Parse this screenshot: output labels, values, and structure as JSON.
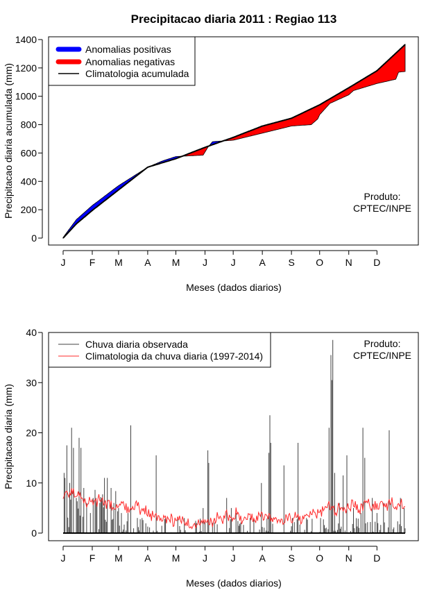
{
  "title": "Precipitacao diaria 2011 : Regiao 113",
  "months": [
    "J",
    "F",
    "M",
    "A",
    "M",
    "J",
    "J",
    "A",
    "S",
    "O",
    "N",
    "D"
  ],
  "colors": {
    "positive": "#0000ff",
    "negative": "#ff0000",
    "clim_line": "#000000",
    "obs_bars": "#404040",
    "clim_rain": "#ff2a2a"
  },
  "chart_data": [
    {
      "type": "area",
      "ylabel": "Precipitacao diaria acumulada (mm)",
      "xlabel": "Meses (dados diarios)",
      "ylim": [
        0,
        1400
      ],
      "yticks": [
        0,
        200,
        400,
        600,
        800,
        1000,
        1200,
        1400
      ],
      "xlim_days": [
        1,
        365
      ],
      "legend": {
        "position": "top-left",
        "entries": [
          "Anomalias positivas",
          "Anomalias negativas",
          "Climatologia acumulada"
        ]
      },
      "annotation": [
        "Produto:",
        "CPTEC/INPE"
      ],
      "climatology_cumulative": [
        [
          1,
          0
        ],
        [
          15,
          100
        ],
        [
          32,
          195
        ],
        [
          60,
          340
        ],
        [
          91,
          500
        ],
        [
          121,
          560
        ],
        [
          152,
          640
        ],
        [
          182,
          710
        ],
        [
          213,
          790
        ],
        [
          244,
          845
        ],
        [
          274,
          940
        ],
        [
          305,
          1060
        ],
        [
          335,
          1180
        ],
        [
          365,
          1365
        ]
      ],
      "observed_cumulative": [
        [
          1,
          5
        ],
        [
          15,
          130
        ],
        [
          32,
          230
        ],
        [
          60,
          370
        ],
        [
          91,
          500
        ],
        [
          107,
          545
        ],
        [
          121,
          575
        ],
        [
          150,
          585
        ],
        [
          155,
          640
        ],
        [
          160,
          680
        ],
        [
          182,
          690
        ],
        [
          213,
          740
        ],
        [
          244,
          790
        ],
        [
          265,
          800
        ],
        [
          272,
          840
        ],
        [
          274,
          870
        ],
        [
          285,
          950
        ],
        [
          305,
          1010
        ],
        [
          310,
          1040
        ],
        [
          335,
          1090
        ],
        [
          355,
          1120
        ],
        [
          358,
          1170
        ],
        [
          365,
          1175
        ]
      ]
    },
    {
      "type": "bar",
      "ylabel": "Precipitacao diaria (mm)",
      "xlabel": "Meses (dados diarios)",
      "ylim": [
        0,
        40
      ],
      "yticks": [
        0,
        10,
        20,
        30,
        40
      ],
      "xlim_days": [
        1,
        365
      ],
      "legend": {
        "position": "top-left",
        "entries": [
          "Chuva diaria observada",
          "Climatologia da chuva diaria (1997-2014)"
        ]
      },
      "annotation": [
        "Produto:",
        "CPTEC/INPE"
      ],
      "observed_peaks": [
        [
          2,
          12
        ],
        [
          3,
          11
        ],
        [
          5,
          17.5
        ],
        [
          8,
          10
        ],
        [
          10,
          21
        ],
        [
          12,
          17
        ],
        [
          15,
          7
        ],
        [
          18,
          19
        ],
        [
          20,
          17
        ],
        [
          23,
          9
        ],
        [
          26,
          6
        ],
        [
          30,
          4
        ],
        [
          36,
          7
        ],
        [
          40,
          6
        ],
        [
          45,
          11
        ],
        [
          48,
          11
        ],
        [
          52,
          9
        ],
        [
          55,
          6
        ],
        [
          60,
          5
        ],
        [
          63,
          4
        ],
        [
          70,
          4
        ],
        [
          73,
          21.5
        ],
        [
          80,
          3
        ],
        [
          85,
          3
        ],
        [
          100,
          15.5
        ],
        [
          110,
          3
        ],
        [
          130,
          3
        ],
        [
          150,
          5
        ],
        [
          155,
          16.5
        ],
        [
          156,
          14
        ],
        [
          160,
          2
        ],
        [
          175,
          7
        ],
        [
          180,
          5
        ],
        [
          185,
          4
        ],
        [
          200,
          3
        ],
        [
          212,
          10
        ],
        [
          220,
          16
        ],
        [
          221,
          23.5
        ],
        [
          222,
          18
        ],
        [
          236,
          13.5
        ],
        [
          245,
          3
        ],
        [
          251,
          18
        ],
        [
          260,
          3
        ],
        [
          275,
          3
        ],
        [
          284,
          21
        ],
        [
          286,
          35.5
        ],
        [
          287,
          30.5
        ],
        [
          288,
          38.5
        ],
        [
          290,
          12
        ],
        [
          295,
          6
        ],
        [
          299,
          11.5
        ],
        [
          303,
          15.5
        ],
        [
          310,
          5
        ],
        [
          318,
          4
        ],
        [
          320,
          21
        ],
        [
          322,
          15
        ],
        [
          330,
          7
        ],
        [
          335,
          4
        ],
        [
          342,
          6
        ],
        [
          348,
          20.5
        ],
        [
          350,
          6
        ],
        [
          360,
          7
        ],
        [
          364,
          5
        ]
      ],
      "climatology_daily": [
        [
          1,
          6.5
        ],
        [
          5,
          7.5
        ],
        [
          10,
          8.5
        ],
        [
          15,
          7
        ],
        [
          20,
          8
        ],
        [
          25,
          6
        ],
        [
          30,
          6.5
        ],
        [
          35,
          5.5
        ],
        [
          40,
          7
        ],
        [
          45,
          5.5
        ],
        [
          50,
          6
        ],
        [
          55,
          5
        ],
        [
          60,
          5
        ],
        [
          65,
          6
        ],
        [
          70,
          4.5
        ],
        [
          75,
          5
        ],
        [
          80,
          5.5
        ],
        [
          85,
          4
        ],
        [
          90,
          4.5
        ],
        [
          95,
          3.5
        ],
        [
          100,
          3
        ],
        [
          105,
          3.5
        ],
        [
          110,
          2.5
        ],
        [
          115,
          3
        ],
        [
          120,
          2
        ],
        [
          125,
          2.5
        ],
        [
          130,
          2.5
        ],
        [
          135,
          2
        ],
        [
          140,
          1.5
        ],
        [
          145,
          2
        ],
        [
          150,
          2
        ],
        [
          155,
          3
        ],
        [
          160,
          2
        ],
        [
          165,
          3.5
        ],
        [
          170,
          2.5
        ],
        [
          175,
          3.5
        ],
        [
          180,
          3
        ],
        [
          185,
          4
        ],
        [
          190,
          2.5
        ],
        [
          195,
          3
        ],
        [
          200,
          3.5
        ],
        [
          205,
          2.5
        ],
        [
          210,
          3.5
        ],
        [
          215,
          3
        ],
        [
          220,
          4
        ],
        [
          225,
          2.5
        ],
        [
          230,
          3
        ],
        [
          235,
          2.5
        ],
        [
          240,
          3
        ],
        [
          245,
          3
        ],
        [
          250,
          3.5
        ],
        [
          255,
          2.5
        ],
        [
          260,
          3
        ],
        [
          265,
          4
        ],
        [
          270,
          3.5
        ],
        [
          275,
          4
        ],
        [
          280,
          5
        ],
        [
          285,
          5.5
        ],
        [
          290,
          4
        ],
        [
          295,
          5.5
        ],
        [
          300,
          4.5
        ],
        [
          305,
          5
        ],
        [
          310,
          6
        ],
        [
          315,
          4.5
        ],
        [
          320,
          5
        ],
        [
          325,
          6.5
        ],
        [
          330,
          5
        ],
        [
          335,
          5.5
        ],
        [
          340,
          6
        ],
        [
          345,
          5
        ],
        [
          350,
          6.5
        ],
        [
          355,
          5
        ],
        [
          360,
          6.5
        ],
        [
          365,
          5
        ]
      ]
    }
  ]
}
